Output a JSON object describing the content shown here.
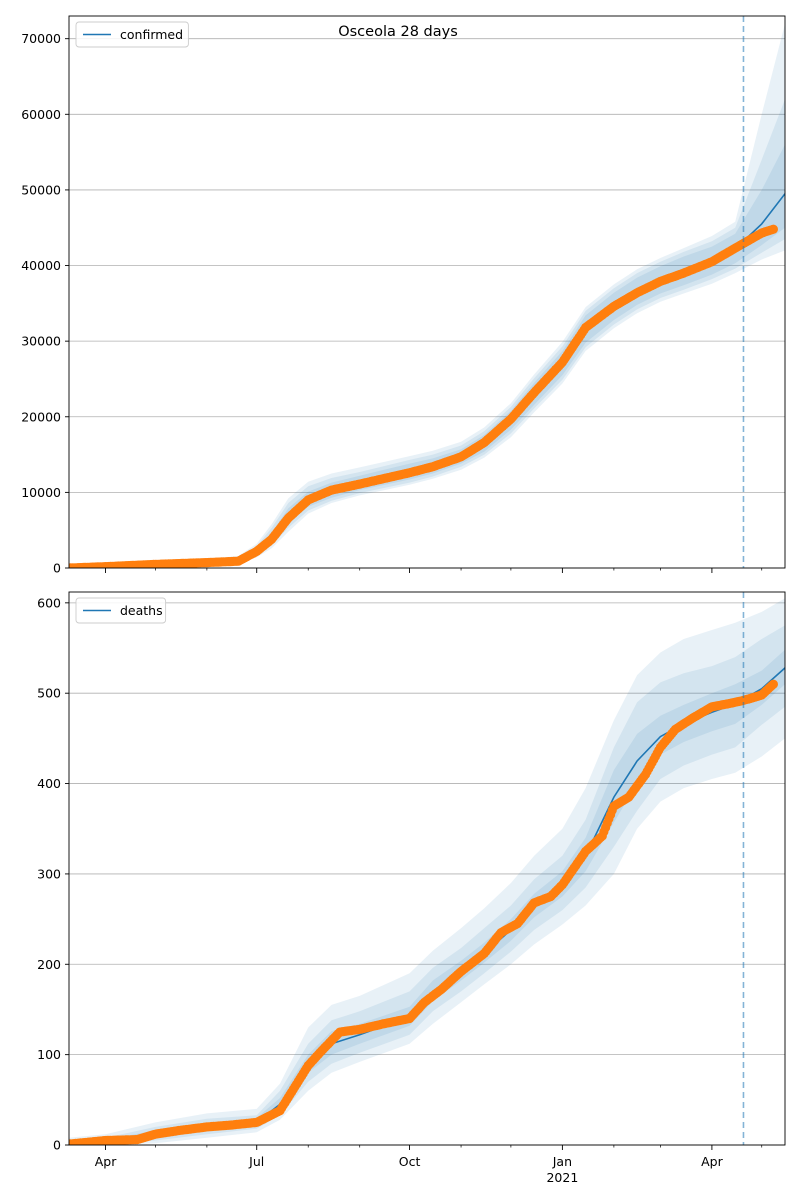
{
  "figure": {
    "title": "Osceola 28 days"
  },
  "colors": {
    "model_line": "#1f77b4",
    "observed_points": "#ff7f0e",
    "band": "#1f77b4",
    "vline": "#1f77b4",
    "grid": "#b0b0b0"
  },
  "chart_data": [
    {
      "type": "line",
      "name": "confirmed-panel",
      "legend": "confirmed",
      "legend_loc": "top-left",
      "grid_y": true,
      "x_start": "2020-03-10",
      "x_end": "2021-05-15",
      "ylim": [
        0,
        73000
      ],
      "yticks": [
        0,
        10000,
        20000,
        30000,
        40000,
        50000,
        60000,
        70000
      ],
      "forecast_start": "2021-04-20",
      "model": [
        [
          "2020-03-10",
          0
        ],
        [
          "2020-04-01",
          150
        ],
        [
          "2020-05-01",
          500
        ],
        [
          "2020-06-01",
          700
        ],
        [
          "2020-06-20",
          1000
        ],
        [
          "2020-07-01",
          2200
        ],
        [
          "2020-07-10",
          4000
        ],
        [
          "2020-07-20",
          6800
        ],
        [
          "2020-08-01",
          9000
        ],
        [
          "2020-08-15",
          10200
        ],
        [
          "2020-09-01",
          11200
        ],
        [
          "2020-10-01",
          12700
        ],
        [
          "2020-10-15",
          13500
        ],
        [
          "2020-11-01",
          14800
        ],
        [
          "2020-11-15",
          16500
        ],
        [
          "2020-12-01",
          19500
        ],
        [
          "2020-12-15",
          23000
        ],
        [
          "2021-01-01",
          27000
        ],
        [
          "2021-01-15",
          31500
        ],
        [
          "2021-02-01",
          34500
        ],
        [
          "2021-02-15",
          36500
        ],
        [
          "2021-03-01",
          38000
        ],
        [
          "2021-03-15",
          39200
        ],
        [
          "2021-04-01",
          40600
        ],
        [
          "2021-04-15",
          42200
        ],
        [
          "2021-05-01",
          45500
        ],
        [
          "2021-05-15",
          49500
        ]
      ],
      "band_levels": [
        {
          "lo": [
            0,
            0,
            350,
            520,
            800,
            1400,
            2600,
            4800,
            7200,
            8600,
            9600,
            11000,
            11800,
            13000,
            14600,
            17300,
            20600,
            24400,
            28700,
            31700,
            33700,
            35200,
            36300,
            37600,
            39000,
            40800,
            42000
          ],
          "hi": [
            250,
            600,
            950,
            1150,
            1600,
            3200,
            5800,
            9200,
            11400,
            12500,
            13300,
            14800,
            15500,
            16700,
            18600,
            21800,
            25600,
            29900,
            34500,
            37500,
            39500,
            41000,
            42300,
            43900,
            45800,
            60000,
            72000
          ]
        },
        {
          "lo": [
            0,
            20,
            380,
            560,
            850,
            1600,
            3000,
            5300,
            7600,
            8900,
            9900,
            11300,
            12100,
            13400,
            15000,
            17800,
            21100,
            24900,
            29200,
            32200,
            34200,
            35700,
            36800,
            38200,
            39600,
            41700,
            43500
          ],
          "hi": [
            150,
            450,
            800,
            1000,
            1400,
            2900,
            5300,
            8600,
            10800,
            11900,
            12700,
            14300,
            15000,
            16200,
            18100,
            21300,
            25100,
            29300,
            34000,
            37000,
            39000,
            40500,
            41800,
            43200,
            45000,
            54000,
            62000
          ]
        },
        {
          "lo": [
            0,
            60,
            420,
            600,
            900,
            1800,
            3400,
            5900,
            8100,
            9300,
            10300,
            11700,
            12500,
            13800,
            15400,
            18300,
            21600,
            25500,
            29800,
            32800,
            34800,
            36300,
            37400,
            38800,
            40300,
            42700,
            45000
          ],
          "hi": [
            80,
            300,
            650,
            850,
            1200,
            2600,
            4700,
            7900,
            10100,
            11300,
            12200,
            13800,
            14500,
            15700,
            17600,
            20800,
            24500,
            28700,
            33400,
            36400,
            38400,
            39900,
            41200,
            42500,
            44200,
            50000,
            56000
          ]
        }
      ],
      "observed": [
        [
          "2020-03-10",
          0
        ],
        [
          "2020-04-01",
          180
        ],
        [
          "2020-05-01",
          480
        ],
        [
          "2020-06-01",
          720
        ],
        [
          "2020-06-20",
          900
        ],
        [
          "2020-07-01",
          2200
        ],
        [
          "2020-07-10",
          3800
        ],
        [
          "2020-07-20",
          6600
        ],
        [
          "2020-08-01",
          9000
        ],
        [
          "2020-08-15",
          10300
        ],
        [
          "2020-09-01",
          11100
        ],
        [
          "2020-10-01",
          12600
        ],
        [
          "2020-10-15",
          13400
        ],
        [
          "2020-11-01",
          14700
        ],
        [
          "2020-11-15",
          16600
        ],
        [
          "2020-12-01",
          19700
        ],
        [
          "2020-12-15",
          23200
        ],
        [
          "2021-01-01",
          27200
        ],
        [
          "2021-01-15",
          31800
        ],
        [
          "2021-02-01",
          34600
        ],
        [
          "2021-02-15",
          36400
        ],
        [
          "2021-03-01",
          37900
        ],
        [
          "2021-03-15",
          39000
        ],
        [
          "2021-04-01",
          40500
        ],
        [
          "2021-04-15",
          42300
        ],
        [
          "2021-05-01",
          44300
        ],
        [
          "2021-05-08",
          44800
        ]
      ]
    },
    {
      "type": "line",
      "name": "deaths-panel",
      "legend": "deaths",
      "legend_loc": "top-left",
      "grid_y": true,
      "x_start": "2020-03-10",
      "x_end": "2021-05-15",
      "ylim": [
        0,
        612
      ],
      "yticks": [
        0,
        100,
        200,
        300,
        400,
        500,
        600
      ],
      "forecast_start": "2021-04-20",
      "model": [
        [
          "2020-03-10",
          0
        ],
        [
          "2020-04-01",
          3
        ],
        [
          "2020-05-01",
          12
        ],
        [
          "2020-06-01",
          20
        ],
        [
          "2020-07-01",
          25
        ],
        [
          "2020-07-15",
          45
        ],
        [
          "2020-08-01",
          90
        ],
        [
          "2020-08-15",
          112
        ],
        [
          "2020-09-01",
          122
        ],
        [
          "2020-10-01",
          142
        ],
        [
          "2020-10-15",
          170
        ],
        [
          "2020-11-01",
          192
        ],
        [
          "2020-11-15",
          212
        ],
        [
          "2020-12-01",
          238
        ],
        [
          "2020-12-15",
          264
        ],
        [
          "2021-01-01",
          288
        ],
        [
          "2021-01-15",
          320
        ],
        [
          "2021-02-01",
          385
        ],
        [
          "2021-02-15",
          425
        ],
        [
          "2021-03-01",
          452
        ],
        [
          "2021-03-15",
          466
        ],
        [
          "2021-04-01",
          479
        ],
        [
          "2021-04-15",
          488
        ],
        [
          "2021-05-01",
          505
        ],
        [
          "2021-05-15",
          528
        ]
      ],
      "band_levels": [
        {
          "lo": [
            0,
            0,
            2,
            8,
            14,
            28,
            60,
            80,
            92,
            112,
            134,
            158,
            178,
            200,
            222,
            244,
            265,
            300,
            350,
            380,
            395,
            405,
            412,
            430,
            450
          ],
          "hi": [
            8,
            12,
            25,
            35,
            40,
            68,
            130,
            155,
            165,
            190,
            215,
            240,
            262,
            290,
            320,
            350,
            395,
            470,
            520,
            545,
            560,
            570,
            578,
            590,
            605
          ]
        },
        {
          "lo": [
            0,
            0,
            5,
            12,
            18,
            33,
            70,
            90,
            102,
            122,
            148,
            170,
            190,
            214,
            238,
            260,
            285,
            330,
            370,
            405,
            420,
            432,
            440,
            465,
            485
          ],
          "hi": [
            5,
            8,
            20,
            29,
            33,
            60,
            112,
            138,
            148,
            170,
            196,
            218,
            240,
            265,
            294,
            320,
            360,
            440,
            490,
            512,
            522,
            530,
            540,
            560,
            575
          ]
        },
        {
          "lo": [
            0,
            1,
            8,
            16,
            21,
            38,
            80,
            100,
            112,
            132,
            159,
            182,
            202,
            226,
            252,
            275,
            303,
            357,
            400,
            432,
            446,
            458,
            466,
            487,
            510
          ],
          "hi": [
            3,
            6,
            16,
            24,
            30,
            52,
            100,
            126,
            134,
            153,
            182,
            204,
            224,
            250,
            278,
            303,
            340,
            415,
            455,
            475,
            487,
            500,
            510,
            525,
            548
          ]
        }
      ],
      "observed": [
        [
          "2020-03-10",
          1
        ],
        [
          "2020-04-01",
          5
        ],
        [
          "2020-04-20",
          6
        ],
        [
          "2020-05-01",
          12
        ],
        [
          "2020-05-15",
          16
        ],
        [
          "2020-06-01",
          20
        ],
        [
          "2020-06-15",
          22
        ],
        [
          "2020-07-01",
          25
        ],
        [
          "2020-07-15",
          38
        ],
        [
          "2020-08-01",
          88
        ],
        [
          "2020-08-10",
          106
        ],
        [
          "2020-08-20",
          125
        ],
        [
          "2020-09-01",
          128
        ],
        [
          "2020-09-15",
          134
        ],
        [
          "2020-10-01",
          140
        ],
        [
          "2020-10-10",
          158
        ],
        [
          "2020-10-20",
          172
        ],
        [
          "2020-11-01",
          192
        ],
        [
          "2020-11-15",
          212
        ],
        [
          "2020-11-25",
          235
        ],
        [
          "2020-12-05",
          245
        ],
        [
          "2020-12-15",
          268
        ],
        [
          "2020-12-25",
          275
        ],
        [
          "2021-01-01",
          288
        ],
        [
          "2021-01-15",
          325
        ],
        [
          "2021-01-25",
          342
        ],
        [
          "2021-02-01",
          375
        ],
        [
          "2021-02-10",
          385
        ],
        [
          "2021-02-20",
          410
        ],
        [
          "2021-03-01",
          440
        ],
        [
          "2021-03-10",
          460
        ],
        [
          "2021-03-20",
          472
        ],
        [
          "2021-04-01",
          485
        ],
        [
          "2021-04-10",
          488
        ],
        [
          "2021-04-20",
          492
        ],
        [
          "2021-05-01",
          498
        ],
        [
          "2021-05-08",
          510
        ]
      ]
    }
  ],
  "x_axis": {
    "ticks": [
      {
        "date": "2020-04-01",
        "label": "Apr",
        "sub": ""
      },
      {
        "date": "2020-07-01",
        "label": "Jul",
        "sub": ""
      },
      {
        "date": "2020-10-01",
        "label": "Oct",
        "sub": ""
      },
      {
        "date": "2021-01-01",
        "label": "Jan",
        "sub": "2021"
      },
      {
        "date": "2021-04-01",
        "label": "Apr",
        "sub": ""
      }
    ],
    "minor_ticks": [
      "2020-05-01",
      "2020-06-01",
      "2020-08-01",
      "2020-09-01",
      "2020-11-01",
      "2020-12-01",
      "2021-02-01",
      "2021-03-01",
      "2021-05-01"
    ]
  }
}
